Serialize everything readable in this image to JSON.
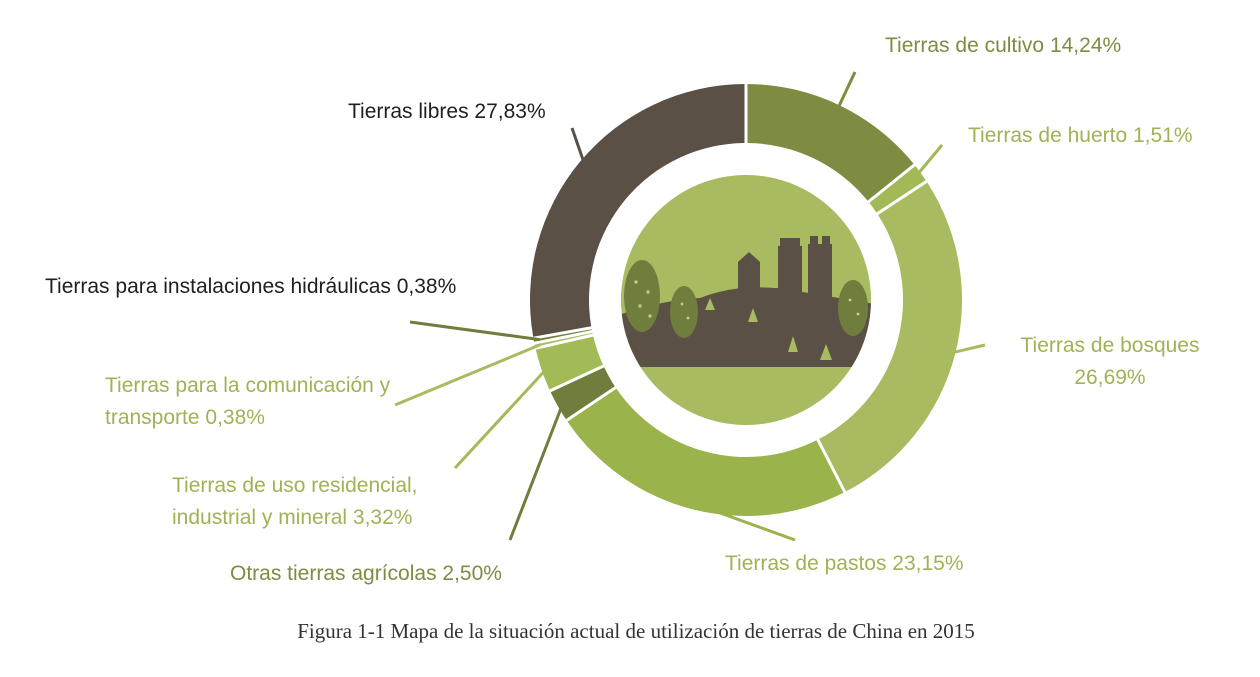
{
  "chart_data": {
    "type": "pie",
    "style": "donut",
    "caption": "Figura 1-1 Mapa de la situación actual de utilización de tierras de China en 2015",
    "slices": [
      {
        "label": "Tierras de cultivo 14,24%",
        "value": 14.24,
        "color": "#7e8c42"
      },
      {
        "label": "Tierras de huerto 1,51%",
        "value": 1.51,
        "color": "#a1b956"
      },
      {
        "label": "Tierras de bosques 26,69%",
        "value": 26.69,
        "color": "#a9bb61",
        "label_lines": [
          "Tierras de bosques",
          "26,69%"
        ]
      },
      {
        "label": "Tierras de pastos 23,15%",
        "value": 23.15,
        "color": "#9ab34a"
      },
      {
        "label": "Otras tierras agrícolas 2,50%",
        "value": 2.5,
        "color": "#6f7e3c"
      },
      {
        "label": "Tierras de uso residencial, industrial y mineral 3,32%",
        "value": 3.32,
        "color": "#a3bb57",
        "label_lines": [
          "Tierras de uso residencial,",
          "industrial y mineral  3,32%"
        ]
      },
      {
        "label": "Tierras para la comunicación y transporte 0,38%",
        "value": 0.38,
        "color": "#a9bb61",
        "label_lines": [
          "Tierras para la comunicación y",
          "transporte  0,38%"
        ]
      },
      {
        "label": "Tierras para instalaciones hidráulicas 0,38%",
        "value": 0.38,
        "color": "#6f7e3c"
      },
      {
        "label": "Tierras libres 27,83%",
        "value": 27.83,
        "color": "#5a5045"
      }
    ],
    "label_colors": {
      "dark": "#1f1f1f",
      "olive": "#7e8c42",
      "light": "#9fb356"
    }
  }
}
